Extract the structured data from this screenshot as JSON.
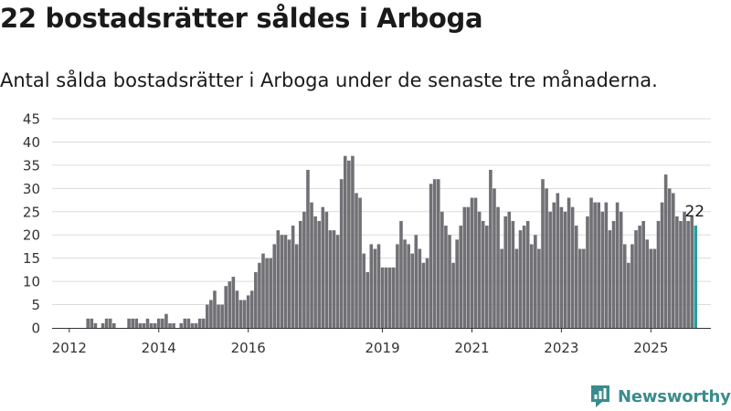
{
  "title": "22 bostadsrätter såldes i Arboga",
  "subtitle": "Antal sålda bostadsrätter i Arboga under de senaste tre månaderna.",
  "brand": {
    "name": "Newsworthy",
    "color": "#3a8c8c"
  },
  "chart_data": {
    "type": "bar",
    "grid": true,
    "legend": "none",
    "ylim": [
      0,
      45
    ],
    "y_ticks": [
      "0",
      "5",
      "10",
      "15",
      "20",
      "25",
      "30",
      "35",
      "40",
      "45"
    ],
    "x_ticks": [
      {
        "label": "2012",
        "index": 3
      },
      {
        "label": "2014",
        "index": 27
      },
      {
        "label": "2016",
        "index": 51
      },
      {
        "label": "2019",
        "index": 87
      },
      {
        "label": "2021",
        "index": 111
      },
      {
        "label": "2023",
        "index": 135
      },
      {
        "label": "2025",
        "index": 159
      }
    ],
    "bar_color": "#717075",
    "highlight_color": "#2a9d99",
    "highlight_label": "22",
    "values": [
      0,
      0,
      0,
      0,
      0,
      0,
      0,
      0,
      2,
      2,
      1,
      0,
      1,
      2,
      2,
      1,
      0,
      0,
      0,
      2,
      2,
      2,
      1,
      1,
      2,
      1,
      1,
      2,
      2,
      3,
      1,
      1,
      0,
      1,
      2,
      2,
      1,
      1,
      2,
      2,
      5,
      6,
      8,
      5,
      5,
      9,
      10,
      11,
      8,
      6,
      6,
      7,
      8,
      12,
      14,
      16,
      15,
      15,
      18,
      21,
      20,
      20,
      19,
      22,
      18,
      23,
      25,
      34,
      27,
      24,
      23,
      26,
      25,
      21,
      21,
      20,
      32,
      37,
      36,
      37,
      29,
      28,
      16,
      12,
      18,
      17,
      18,
      13,
      13,
      13,
      13,
      18,
      23,
      19,
      18,
      16,
      20,
      17,
      14,
      15,
      31,
      32,
      32,
      25,
      22,
      20,
      14,
      19,
      22,
      26,
      26,
      28,
      28,
      25,
      23,
      22,
      34,
      30,
      26,
      17,
      24,
      25,
      23,
      17,
      21,
      22,
      23,
      18,
      20,
      17,
      32,
      30,
      25,
      27,
      29,
      26,
      25,
      28,
      26,
      22,
      17,
      17,
      24,
      28,
      27,
      27,
      25,
      27,
      21,
      23,
      27,
      25,
      18,
      14,
      18,
      21,
      22,
      23,
      19,
      17,
      17,
      23,
      27,
      33,
      30,
      29,
      24,
      23,
      25,
      23,
      24,
      22
    ]
  }
}
